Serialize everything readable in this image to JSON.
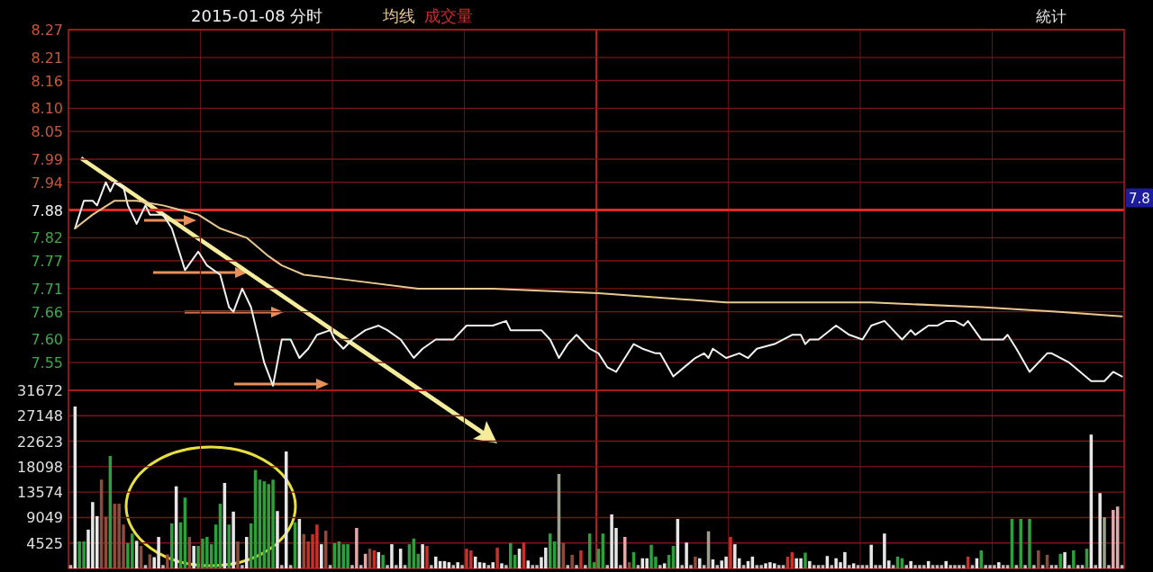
{
  "chart_data": [
    {
      "type": "line",
      "title": "2015-01-08 分时",
      "grid": true,
      "tick_labels": "y",
      "categories": [
        null,
        null,
        null,
        null,
        null,
        null,
        null,
        null,
        null,
        null,
        null,
        null,
        null,
        null,
        null,
        null,
        null,
        null,
        null,
        null,
        null,
        null,
        null,
        null,
        null,
        null,
        null,
        null,
        null,
        null,
        null,
        null,
        null,
        null,
        null,
        null,
        null,
        null,
        null,
        null,
        null,
        null,
        null,
        null,
        null,
        null,
        null,
        null,
        null,
        null,
        null,
        null,
        null,
        null,
        null,
        null,
        null,
        null,
        null,
        null,
        null,
        null,
        null,
        null,
        null,
        null,
        null,
        null,
        null,
        null,
        null,
        null,
        null,
        null,
        null,
        null,
        null,
        null,
        null,
        null,
        null,
        null,
        null,
        null,
        null,
        null,
        null,
        null,
        null,
        null,
        null,
        null,
        null,
        null,
        null,
        null,
        null,
        null,
        null,
        null,
        null,
        null,
        null,
        null,
        null,
        null,
        null,
        null,
        null,
        null,
        null,
        null,
        null,
        null,
        null,
        null,
        null,
        null,
        null,
        null,
        null,
        null,
        null,
        null,
        null,
        null,
        null,
        null,
        null,
        null,
        null,
        null,
        null,
        null,
        null,
        null,
        null,
        null,
        null,
        null,
        null,
        null,
        null,
        null,
        null,
        null,
        null,
        null,
        null,
        null,
        null,
        null,
        null,
        null,
        null,
        null,
        null,
        null,
        null,
        null,
        null,
        null,
        null,
        null,
        null,
        null,
        null,
        null,
        null,
        null,
        null,
        null,
        null,
        null,
        null,
        null,
        null,
        null,
        null,
        null,
        null,
        null,
        null,
        null,
        null,
        null,
        null,
        null,
        null,
        null,
        null,
        null,
        null,
        null,
        null,
        null,
        null,
        null,
        null,
        null,
        null,
        null,
        null,
        null,
        null,
        null,
        null,
        null,
        null,
        null,
        null,
        null,
        null,
        null,
        null,
        null,
        null,
        null,
        null,
        null,
        null,
        null,
        null,
        null,
        null,
        null,
        null,
        null,
        null,
        null,
        null,
        null,
        null,
        null,
        null,
        null,
        null,
        null,
        null,
        null
      ],
      "ylim": [
        7.49,
        8.27
      ],
      "yticks": [
        8.27,
        8.21,
        8.16,
        {
          "value": 8.1,
          "label": "8.10"
        },
        8.05,
        7.99,
        7.94,
        7.88,
        7.82,
        7.77,
        7.71,
        7.66,
        {
          "value": 7.6,
          "label": "7.60"
        },
        7.55
      ],
      "ref_lines": [
        {
          "axis": "y",
          "value": 7.88,
          "color": "#e02828"
        }
      ],
      "annotations": [
        "統计",
        "7.8"
      ],
      "series": [
        {
          "color": "#f2f2f2",
          "values": [
            null,
            7.84,
            null,
            7.9,
            null,
            7.9,
            7.89,
            null,
            7.94,
            7.92,
            7.94,
            null,
            7.93,
            7.89,
            null,
            7.85,
            null,
            7.89,
            7.87,
            null,
            null,
            7.87,
            null,
            7.84,
            null,
            7.78,
            7.75,
            null,
            null,
            7.79,
            null,
            7.76,
            null,
            null,
            7.74,
            null,
            7.67,
            7.66,
            null,
            7.71,
            null,
            7.67,
            null,
            null,
            7.55,
            null,
            7.5,
            null,
            7.6,
            null,
            7.6,
            null,
            7.56,
            null,
            7.58,
            null,
            7.61,
            null,
            null,
            7.62,
            7.6,
            null,
            7.58,
            null,
            7.6,
            null,
            null,
            7.62,
            null,
            null,
            7.63,
            null,
            7.62,
            null,
            null,
            7.6,
            null,
            null,
            7.56,
            null,
            7.58,
            null,
            null,
            7.6,
            null,
            7.6,
            null,
            7.6,
            null,
            null,
            7.63,
            null,
            null,
            7.63,
            null,
            null,
            7.63,
            null,
            null,
            7.64,
            7.62,
            null,
            null,
            7.62,
            7.62,
            null,
            null,
            7.62,
            null,
            7.6,
            null,
            7.56,
            null,
            7.59,
            null,
            7.61,
            null,
            null,
            7.58,
            null,
            7.57,
            null,
            7.54,
            null,
            7.53,
            null,
            null,
            null,
            7.59,
            null,
            7.58,
            null,
            null,
            7.57,
            7.57,
            null,
            null,
            7.52,
            null,
            null,
            null,
            null,
            7.56,
            null,
            7.57,
            7.56,
            7.58,
            null,
            null,
            7.56,
            null,
            null,
            7.57,
            null,
            7.56,
            null,
            7.58,
            null,
            null,
            null,
            7.59,
            null,
            null,
            null,
            7.61,
            null,
            7.61,
            7.59,
            7.6,
            null,
            7.6,
            null,
            null,
            null,
            7.63,
            null,
            null,
            7.61,
            null,
            null,
            7.6,
            null,
            7.63,
            null,
            null,
            7.64,
            null,
            7.62,
            null,
            7.6,
            null,
            7.62,
            7.61,
            null,
            null,
            7.63,
            null,
            7.63,
            null,
            7.64,
            null,
            7.64,
            null,
            7.63,
            7.64,
            null,
            null,
            7.6,
            null,
            null,
            null,
            7.6,
            7.6,
            7.61,
            null,
            7.58,
            null,
            null,
            7.53,
            null,
            null,
            null,
            7.57,
            7.57,
            null,
            null,
            null,
            7.55,
            null,
            null,
            null,
            null,
            7.51,
            null,
            null,
            7.51,
            null,
            7.53,
            null,
            7.52
          ]
        },
        {
          "name": "均线",
          "color": "#e8c890",
          "values": [
            null,
            7.84,
            null,
            null,
            null,
            7.87,
            null,
            null,
            null,
            null,
            7.9,
            null,
            null,
            null,
            null,
            7.9,
            null,
            null,
            null,
            null,
            null,
            7.89,
            null,
            null,
            null,
            7.88,
            null,
            null,
            null,
            7.87,
            null,
            null,
            null,
            null,
            7.84,
            null,
            null,
            null,
            null,
            null,
            7.82,
            null,
            null,
            null,
            null,
            7.78,
            null,
            null,
            7.76,
            null,
            null,
            null,
            null,
            7.74,
            null,
            null,
            null,
            null,
            null,
            null,
            null,
            null,
            7.73,
            null,
            null,
            null,
            null,
            null,
            null,
            null,
            null,
            null,
            null,
            null,
            null,
            null,
            null,
            null,
            null,
            7.71,
            null,
            null,
            null,
            null,
            null,
            null,
            null,
            null,
            null,
            null,
            null,
            null,
            null,
            null,
            null,
            null,
            7.71,
            null,
            null,
            null,
            null,
            null,
            null,
            null,
            null,
            null,
            null,
            null,
            null,
            null,
            null,
            null,
            null,
            null,
            null,
            null,
            null,
            null,
            null,
            null,
            7.7,
            null,
            null,
            null,
            null,
            null,
            null,
            null,
            null,
            null,
            null,
            null,
            null,
            null,
            null,
            null,
            null,
            null,
            null,
            null,
            null,
            null,
            null,
            null,
            null,
            null,
            null,
            null,
            null,
            7.68,
            null,
            null,
            null,
            null,
            null,
            null,
            null,
            null,
            null,
            null,
            null,
            null,
            null,
            null,
            null,
            null,
            null,
            null,
            null,
            null,
            null,
            null,
            null,
            null,
            null,
            null,
            null,
            null,
            null,
            null,
            null,
            null,
            7.68,
            null,
            null,
            null,
            null,
            null,
            null,
            null,
            null,
            null,
            null,
            null,
            null,
            null,
            null,
            null,
            null,
            null,
            null,
            null,
            null,
            null,
            null,
            null,
            null,
            7.67,
            null,
            null,
            null,
            null,
            null,
            null,
            null,
            null,
            null,
            null,
            null,
            null,
            null,
            null,
            null,
            null,
            7.66,
            null,
            null,
            null,
            null,
            null,
            null,
            null,
            null,
            null,
            null,
            null,
            null,
            null,
            null,
            7.65
          ]
        }
      ]
    },
    {
      "type": "bar",
      "grid": true,
      "tick_labels": "y",
      "categories": [
        null,
        null,
        null,
        null,
        null,
        null,
        null,
        null,
        null,
        null,
        null,
        null,
        null,
        null,
        null,
        null,
        null,
        null,
        null,
        null,
        null,
        null,
        null,
        null,
        null,
        null,
        null,
        null,
        null,
        null,
        null,
        null,
        null,
        null,
        null,
        null,
        null,
        null,
        null,
        null,
        null,
        null,
        null,
        null,
        null,
        null,
        null,
        null,
        null,
        null,
        null,
        null,
        null,
        null,
        null,
        null,
        null,
        null,
        null,
        null,
        null,
        null,
        null,
        null,
        null,
        null,
        null,
        null,
        null,
        null,
        null,
        null,
        null,
        null,
        null,
        null,
        null,
        null,
        null,
        null,
        null,
        null,
        null,
        null,
        null,
        null,
        null,
        null,
        null,
        null,
        null,
        null,
        null,
        null,
        null,
        null,
        null,
        null,
        null,
        null,
        null,
        null,
        null,
        null,
        null,
        null,
        null,
        null,
        null,
        null,
        null,
        null,
        null,
        null,
        null,
        null,
        null,
        null,
        null,
        null,
        null,
        null,
        null,
        null,
        null,
        null,
        null,
        null,
        null,
        null,
        null,
        null,
        null,
        null,
        null,
        null,
        null,
        null,
        null,
        null,
        null,
        null,
        null,
        null,
        null,
        null,
        null,
        null,
        null,
        null,
        null,
        null,
        null,
        null,
        null,
        null,
        null,
        null,
        null,
        null,
        null,
        null,
        null,
        null,
        null,
        null,
        null,
        null,
        null,
        null,
        null,
        null,
        null,
        null,
        null,
        null,
        null,
        null,
        null,
        null,
        null,
        null,
        null,
        null,
        null,
        null,
        null,
        null,
        null,
        null,
        null,
        null,
        null,
        null,
        null,
        null,
        null,
        null,
        null,
        null,
        null,
        null,
        null,
        null,
        null,
        null,
        null,
        null,
        null,
        null,
        null,
        null,
        null,
        null,
        null,
        null,
        null,
        null,
        null,
        null,
        null,
        null,
        null,
        null,
        null,
        null,
        null,
        null,
        null,
        null,
        null,
        null,
        null,
        null,
        null,
        null,
        null,
        null,
        null,
        null
      ],
      "ylim": [
        0,
        31672
      ],
      "yticks": [
        31672,
        27148,
        22623,
        18098,
        13574,
        9049,
        4525
      ],
      "series": [
        {
          "name": "成交量",
          "color": "#c8302c",
          "values": [
            600,
            28800,
            4800,
            4800,
            6900,
            11800,
            9300,
            15800,
            9200,
            20000,
            11500,
            11500,
            7800,
            4500,
            6200,
            4900,
            4000,
            600,
            2500,
            2000,
            5600,
            600,
            2500,
            8000,
            14600,
            8200,
            12600,
            5600,
            4000,
            4000,
            5300,
            5600,
            4300,
            7800,
            11500,
            15200,
            7800,
            10100,
            4800,
            600,
            5600,
            8000,
            17500,
            15800,
            15500,
            15000,
            15800,
            10200,
            600,
            20800,
            600,
            8200,
            8800,
            6100,
            4800,
            6100,
            7800,
            4300,
            6700,
            600,
            4500,
            4800,
            4300,
            4300,
            600,
            7200,
            600,
            2600,
            3500,
            3200,
            2900,
            2400,
            600,
            4300,
            600,
            3500,
            600,
            4300,
            5300,
            2600,
            4300,
            4000,
            600,
            2100,
            1300,
            1300,
            1100,
            600,
            1100,
            600,
            3500,
            3200,
            2100,
            1100,
            1000,
            600,
            1100,
            3700,
            900,
            600,
            4500,
            2400,
            3500,
            4600,
            1400,
            600,
            600,
            2000,
            3700,
            6200,
            4800,
            16800,
            4500,
            600,
            2400,
            600,
            3200,
            600,
            6200,
            1100,
            3500,
            6200,
            600,
            9600,
            7200,
            600,
            5600,
            1100,
            2900,
            600,
            1800,
            1800,
            4200,
            2100,
            600,
            900,
            2400,
            4000,
            8800,
            600,
            4600,
            600,
            2100,
            1800,
            600,
            6600,
            1600,
            600,
            1400,
            2100,
            5600,
            4300,
            1800,
            600,
            1300,
            2100,
            600,
            600,
            900,
            1100,
            900,
            600,
            600,
            2100,
            2900,
            1800,
            1800,
            2800,
            1300,
            600,
            600,
            600,
            2200,
            600,
            1800,
            1100,
            2900,
            600,
            900,
            600,
            600,
            600,
            4200,
            600,
            600,
            6200,
            1400,
            600,
            2100,
            1800,
            600,
            1300,
            600,
            600,
            600,
            1300,
            600,
            600,
            600,
            1300,
            600,
            600,
            600,
            600,
            2100,
            600,
            1800,
            3200,
            600,
            600,
            600,
            1100,
            600,
            600,
            8800,
            600,
            8800,
            600,
            8800,
            600,
            3200,
            600,
            2400,
            600,
            600,
            2600,
            2900,
            600,
            3200,
            600,
            600,
            3500,
            23800,
            600,
            13400,
            9100,
            600,
            10400,
            11000,
            600
          ],
          "colors": [
            "#bdbdbd",
            "#e6e6e6",
            "#2f9e3c",
            "#2f9e3c",
            "#e6e6e6",
            "#e6e6e6",
            "#e6e6e6",
            "#8e4a3a",
            "#8e4a3a",
            "#2f9e3c",
            "#8e4a3a",
            "#8e4a3a",
            "#8e4a3a",
            "#2f9e3c",
            "#2f9e3c",
            "#e6e6e6",
            "#8e4a3a",
            "#bdbdbd",
            "#8e4a3a",
            "#e6e6e6",
            "#e6e6e6",
            "#bdbdbd",
            "#8e4a3a",
            "#2f9e3c",
            "#e6e6e6",
            "#2f9e3c",
            "#2f9e3c",
            "#8e4a3a",
            "#e6e6e6",
            "#2f9e3c",
            "#2f9e3c",
            "#2f9e3c",
            "#2f9e3c",
            "#2f9e3c",
            "#2f9e3c",
            "#e6e6e6",
            "#2f9e3c",
            "#e6e6e6",
            "#8e4a3a",
            "#bdbdbd",
            "#e6e6e6",
            "#2f9e3c",
            "#2f9e3c",
            "#2f9e3c",
            "#2f9e3c",
            "#2f9e3c",
            "#2f9e3c",
            "#e6e6e6",
            "#bdbdbd",
            "#e6e6e6",
            "#bdbdbd",
            "#2f9e3c",
            "#e6e6e6",
            "#8e4a3a",
            "#c8302c",
            "#c8302c",
            "#c8302c",
            "#e6e6e6",
            "#8e4a3a",
            "#bdbdbd",
            "#2f9e3c",
            "#2f9e3c",
            "#2f9e3c",
            "#2f9e3c",
            "#bdbdbd",
            "#e0a8a8",
            "#bdbdbd",
            "#e0a8a8",
            "#8e4a3a",
            "#c8302c",
            "#e6e6e6",
            "#2f9e3c",
            "#bdbdbd",
            "#e6e6e6",
            "#bdbdbd",
            "#e6e6e6",
            "#bdbdbd",
            "#2f9e3c",
            "#2f9e3c",
            "#2f9e3c",
            "#e6e6e6",
            "#c8302c",
            "#bdbdbd",
            "#e6e6e6",
            "#e6e6e6",
            "#e6e6e6",
            "#e6e6e6",
            "#bdbdbd",
            "#e6e6e6",
            "#bdbdbd",
            "#c8302c",
            "#c8302c",
            "#e6e6e6",
            "#e6e6e6",
            "#e6e6e6",
            "#bdbdbd",
            "#e6e6e6",
            "#c8302c",
            "#e6e6e6",
            "#bdbdbd",
            "#2f9e3c",
            "#2f9e3c",
            "#e6e6e6",
            "#c8302c",
            "#e6e6e6",
            "#bdbdbd",
            "#bdbdbd",
            "#e6e6e6",
            "#e6e6e6",
            "#2f9e3c",
            "#2f9e3c",
            "#9aa08a",
            "#8e4a3a",
            "#bdbdbd",
            "#8e4a3a",
            "#bdbdbd",
            "#c8302c",
            "#bdbdbd",
            "#2f9e3c",
            "#2f9e3c",
            "#2f9e3c",
            "#2f9e3c",
            "#bdbdbd",
            "#e6e6e6",
            "#e6e6e6",
            "#bdbdbd",
            "#e0a8a8",
            "#8e4a3a",
            "#2f9e3c",
            "#bdbdbd",
            "#e6e6e6",
            "#e6e6e6",
            "#2f9e3c",
            "#2f9e3c",
            "#bdbdbd",
            "#e6e6e6",
            "#2f9e3c",
            "#2f9e3c",
            "#e6e6e6",
            "#bdbdbd",
            "#e6e6e6",
            "#bdbdbd",
            "#8e4a3a",
            "#e6e6e6",
            "#bdbdbd",
            "#9aa08a",
            "#e6e6e6",
            "#bdbdbd",
            "#e6e6e6",
            "#e6e6e6",
            "#c8302c",
            "#e6e6e6",
            "#e6e6e6",
            "#bdbdbd",
            "#e6e6e6",
            "#e6e6e6",
            "#bdbdbd",
            "#bdbdbd",
            "#e6e6e6",
            "#e6e6e6",
            "#e6e6e6",
            "#bdbdbd",
            "#bdbdbd",
            "#c8302c",
            "#c8302c",
            "#e6e6e6",
            "#e6e6e6",
            "#2f9e3c",
            "#e6e6e6",
            "#bdbdbd",
            "#bdbdbd",
            "#bdbdbd",
            "#e6e6e6",
            "#bdbdbd",
            "#e6e6e6",
            "#e6e6e6",
            "#e6e6e6",
            "#bdbdbd",
            "#e6e6e6",
            "#bdbdbd",
            "#bdbdbd",
            "#bdbdbd",
            "#e6e6e6",
            "#bdbdbd",
            "#bdbdbd",
            "#e6e6e6",
            "#e6e6e6",
            "#bdbdbd",
            "#2f9e3c",
            "#2f9e3c",
            "#bdbdbd",
            "#e6e6e6",
            "#bdbdbd",
            "#bdbdbd",
            "#bdbdbd",
            "#e6e6e6",
            "#bdbdbd",
            "#bdbdbd",
            "#bdbdbd",
            "#e6e6e6",
            "#bdbdbd",
            "#bdbdbd",
            "#bdbdbd",
            "#bdbdbd",
            "#c8302c",
            "#bdbdbd",
            "#e6e6e6",
            "#2f9e3c",
            "#bdbdbd",
            "#bdbdbd",
            "#bdbdbd",
            "#e6e6e6",
            "#bdbdbd",
            "#bdbdbd",
            "#2f9e3c",
            "#bdbdbd",
            "#2f9e3c",
            "#bdbdbd",
            "#2f9e3c",
            "#bdbdbd",
            "#8e4a3a",
            "#bdbdbd",
            "#8e4a3a",
            "#bdbdbd",
            "#bdbdbd",
            "#2f9e3c",
            "#e6e6e6",
            "#bdbdbd",
            "#2f9e3c",
            "#bdbdbd",
            "#bdbdbd",
            "#2f9e3c",
            "#e6e6e6",
            "#bdbdbd",
            "#e6e6e6",
            "#9aa08a",
            "#bdbdbd",
            "#e0a8a8",
            "#e0a8a8",
            "#bdbdbd"
          ]
        }
      ]
    }
  ]
}
